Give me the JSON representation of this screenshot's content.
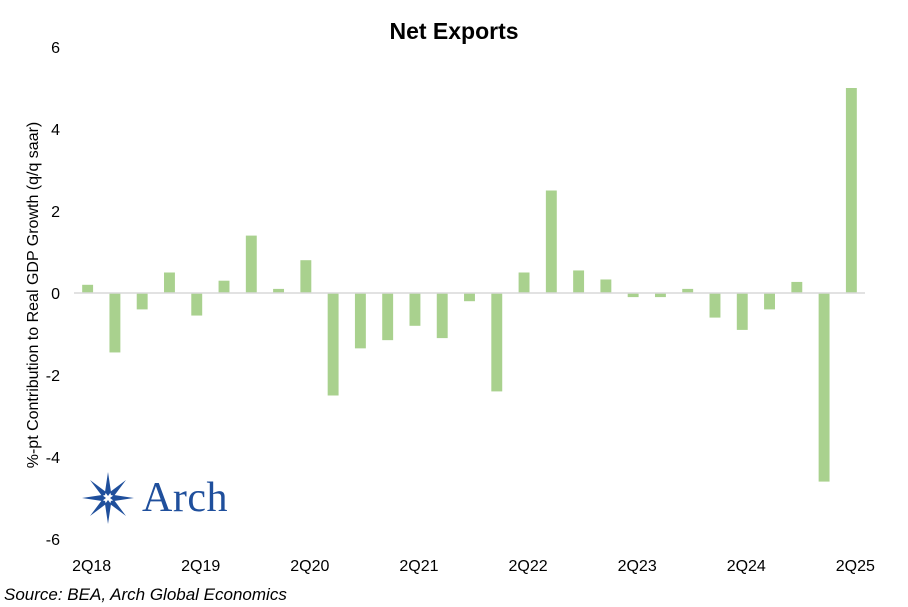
{
  "chart_data": {
    "type": "bar",
    "title": "Net Exports",
    "xlabel": "",
    "ylabel": "%-pt Contribution to Real GDP Growth (q/q saar)",
    "ylim": [
      -6,
      6
    ],
    "yticks": [
      "6",
      "4",
      "2",
      "0",
      "-2",
      "-4",
      "-6"
    ],
    "ytick_values": [
      6,
      4,
      2,
      0,
      -2,
      -4,
      -6
    ],
    "categories": [
      "2Q18",
      "3Q18",
      "4Q18",
      "1Q19",
      "2Q19",
      "3Q19",
      "4Q19",
      "1Q20",
      "2Q20",
      "3Q20",
      "4Q20",
      "1Q21",
      "2Q21",
      "3Q21",
      "4Q21",
      "1Q22",
      "2Q22",
      "3Q22",
      "4Q22",
      "1Q23",
      "2Q23",
      "3Q23",
      "4Q23",
      "1Q24",
      "2Q24",
      "3Q24",
      "4Q24",
      "1Q25",
      "2Q25"
    ],
    "xtick_labels": [
      "2Q18",
      "2Q19",
      "2Q20",
      "2Q21",
      "2Q22",
      "2Q23",
      "2Q24",
      "2Q25"
    ],
    "xtick_categories": [
      "2Q18",
      "2Q19",
      "2Q20",
      "2Q21",
      "2Q22",
      "2Q23",
      "2Q24",
      "2Q25"
    ],
    "values": [
      0.2,
      -1.45,
      -0.4,
      0.5,
      -0.55,
      0.3,
      1.4,
      0.1,
      0.8,
      -2.5,
      -1.35,
      -1.15,
      -0.8,
      -1.1,
      -0.2,
      -2.4,
      0.5,
      2.5,
      0.55,
      0.33,
      -0.1,
      -0.1,
      0.1,
      -0.6,
      -0.9,
      -0.4,
      0.27,
      -4.6,
      5.0
    ],
    "bar_color": "#a9d18e",
    "axis_color": "#d9d9d9",
    "grid": false,
    "legend": "none"
  },
  "footer": {
    "source": "Source: BEA, Arch Global Economics"
  },
  "logo": {
    "text": "Arch",
    "icon": "arch-star-logo-icon",
    "color": "#1f4f9c"
  }
}
